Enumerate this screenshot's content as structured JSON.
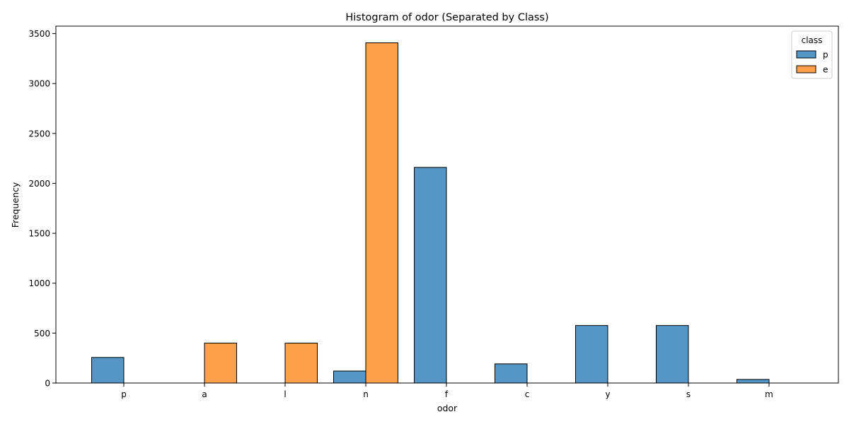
{
  "chart_data": {
    "type": "bar",
    "title": "Histogram of odor (Separated by Class)",
    "xlabel": "odor",
    "ylabel": "Frequency",
    "categories": [
      "p",
      "a",
      "l",
      "n",
      "f",
      "c",
      "y",
      "s",
      "m"
    ],
    "series": [
      {
        "name": "p",
        "color": "#5496c6",
        "values": [
          256,
          0,
          0,
          120,
          2160,
          192,
          576,
          576,
          36
        ]
      },
      {
        "name": "e",
        "color": "#fe9f4a",
        "values": [
          0,
          400,
          400,
          3408,
          0,
          0,
          0,
          0,
          0
        ]
      }
    ],
    "ylim": [
      0,
      3575
    ],
    "yticks": [
      0,
      500,
      1000,
      1500,
      2000,
      2500,
      3000,
      3500
    ],
    "legend": {
      "title": "class",
      "position": "top-right"
    },
    "grid": false
  }
}
